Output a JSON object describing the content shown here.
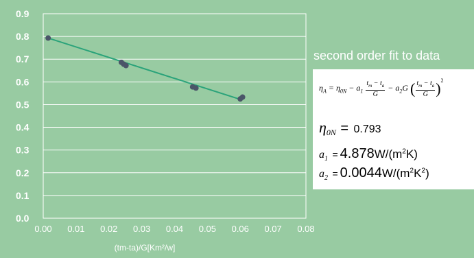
{
  "chart_data": {
    "type": "scatter",
    "title": "",
    "xlabel": "(tm-ta)/G[Km²/w]",
    "ylabel": "",
    "xlim": [
      0.0,
      0.08
    ],
    "ylim": [
      0.0,
      0.9
    ],
    "x_ticks": [
      "0.00",
      "0.01",
      "0.02",
      "0.03",
      "0.04",
      "0.05",
      "0.06",
      "0.07",
      "0.08"
    ],
    "y_ticks": [
      "0.0",
      "0.1",
      "0.2",
      "0.3",
      "0.4",
      "0.5",
      "0.6",
      "0.7",
      "0.8",
      "0.9"
    ],
    "grid": true,
    "series": [
      {
        "type": "scatter",
        "color": "#4a5568",
        "x": [
          0.0015,
          0.0238,
          0.0245,
          0.0252,
          0.0455,
          0.0465,
          0.06,
          0.0607
        ],
        "y": [
          0.793,
          0.686,
          0.678,
          0.672,
          0.578,
          0.573,
          0.525,
          0.533
        ]
      },
      {
        "type": "line",
        "color": "#2aa37a",
        "x": [
          0.0015,
          0.06
        ],
        "y": [
          0.793,
          0.523
        ]
      }
    ]
  },
  "fit": {
    "title": "second order fit to data",
    "formula": {
      "lhs": "η",
      "lhs_sub": "A",
      "eta0": "η",
      "eta0_sub": "0N",
      "a1": "a",
      "a1_sub": "1",
      "a2": "a",
      "a2_sub": "2",
      "G": "G",
      "num_tm": "t",
      "num_tm_sub": "m",
      "num_ta": "t",
      "num_ta_sub": "a",
      "exponent": "2"
    },
    "eta0": {
      "symbol": "η",
      "sub": "0N",
      "value": "0.793"
    },
    "a1": {
      "symbol": "a",
      "sub": "1",
      "value": "4.878",
      "unit_pre": "W/(m",
      "unit_sup": "2",
      "unit_post": "K)"
    },
    "a2": {
      "symbol": "a",
      "sub": "2",
      "value": "0.0044",
      "unit_pre": "W/(m",
      "unit_sup": "2",
      "unit_mid": "K",
      "unit_sup2": "2",
      "unit_post": ")"
    }
  },
  "colors": {
    "background": "#98cba2",
    "grid": "#ffffff",
    "point": "#4a5568",
    "line": "#2aa37a",
    "panel": "#ffffff"
  }
}
